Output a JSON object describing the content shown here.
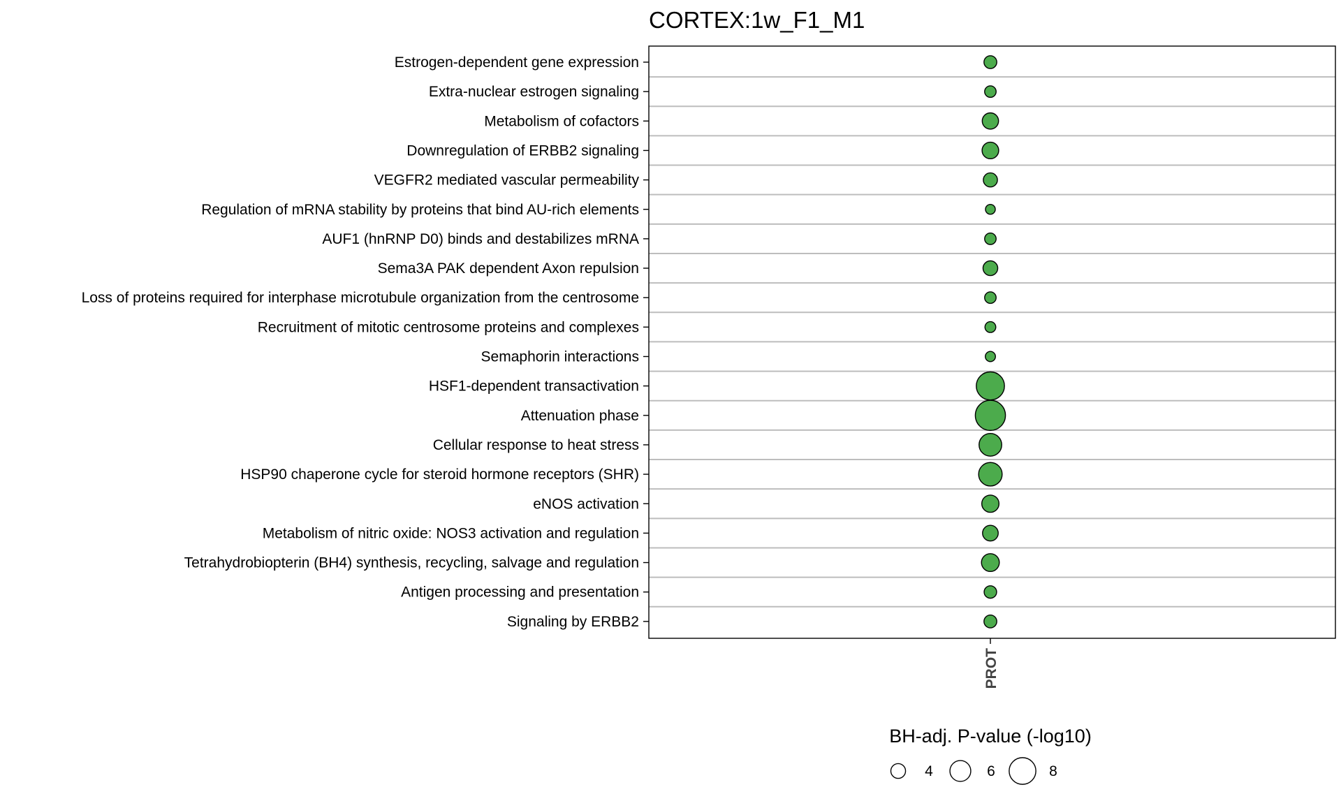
{
  "chart_data": {
    "type": "scatter",
    "title": "CORTEX:1w_F1_M1",
    "x_categories": [
      "PROT"
    ],
    "y_categories": [
      "Estrogen-dependent gene expression",
      "Extra-nuclear estrogen signaling",
      "Metabolism of cofactors",
      "Downregulation of ERBB2 signaling",
      "VEGFR2 mediated vascular permeability",
      "Regulation of mRNA stability by proteins that bind AU-rich elements",
      "AUF1 (hnRNP D0) binds and destabilizes mRNA",
      "Sema3A PAK dependent Axon repulsion",
      "Loss of proteins required for interphase microtubule organization from the centrosome",
      "Recruitment of mitotic centrosome proteins and complexes",
      "Semaphorin interactions",
      "HSF1-dependent transactivation",
      "Attenuation phase",
      "Cellular response to heat stress",
      "HSP90 chaperone cycle for steroid hormone receptors (SHR)",
      "eNOS activation",
      "Metabolism of nitric oxide: NOS3 activation and regulation",
      "Tetrahydrobiopterin (BH4) synthesis, recycling, salvage and regulation",
      "Antigen processing and presentation",
      "Signaling by ERBB2"
    ],
    "points": [
      {
        "x": "PROT",
        "y": "Estrogen-dependent gene expression",
        "size": 3.4
      },
      {
        "x": "PROT",
        "y": "Extra-nuclear estrogen signaling",
        "size": 3.0
      },
      {
        "x": "PROT",
        "y": "Metabolism of cofactors",
        "size": 4.5
      },
      {
        "x": "PROT",
        "y": "Downregulation of ERBB2 signaling",
        "size": 4.6
      },
      {
        "x": "PROT",
        "y": "VEGFR2 mediated vascular permeability",
        "size": 3.8
      },
      {
        "x": "PROT",
        "y": "Regulation of mRNA stability by proteins that bind AU-rich elements",
        "size": 2.5
      },
      {
        "x": "PROT",
        "y": "AUF1 (hnRNP D0) binds and destabilizes mRNA",
        "size": 3.0
      },
      {
        "x": "PROT",
        "y": "Sema3A PAK dependent Axon repulsion",
        "size": 4.0
      },
      {
        "x": "PROT",
        "y": "Loss of proteins required for interphase microtubule organization from the centrosome",
        "size": 3.0
      },
      {
        "x": "PROT",
        "y": "Recruitment of mitotic centrosome proteins and complexes",
        "size": 2.8
      },
      {
        "x": "PROT",
        "y": "Semaphorin interactions",
        "size": 2.6
      },
      {
        "x": "PROT",
        "y": "HSF1-dependent transactivation",
        "size": 8.5
      },
      {
        "x": "PROT",
        "y": "Attenuation phase",
        "size": 9.2
      },
      {
        "x": "PROT",
        "y": "Cellular response to heat stress",
        "size": 6.6
      },
      {
        "x": "PROT",
        "y": "HSP90 chaperone cycle for steroid hormone receptors (SHR)",
        "size": 6.9
      },
      {
        "x": "PROT",
        "y": "eNOS activation",
        "size": 4.8
      },
      {
        "x": "PROT",
        "y": "Metabolism of nitric oxide: NOS3 activation and regulation",
        "size": 4.3
      },
      {
        "x": "PROT",
        "y": "Tetrahydrobiopterin (BH4) synthesis, recycling, salvage and regulation",
        "size": 5.0
      },
      {
        "x": "PROT",
        "y": "Antigen processing and presentation",
        "size": 3.3
      },
      {
        "x": "PROT",
        "y": "Signaling by ERBB2",
        "size": 3.4
      }
    ],
    "size_legend": {
      "title": "BH-adj. P-value (-log10)",
      "breaks": [
        4,
        6,
        8
      ]
    },
    "point_fill": "#4cab4c",
    "point_stroke": "#000000",
    "grid": true,
    "legend_position": "bottom"
  }
}
